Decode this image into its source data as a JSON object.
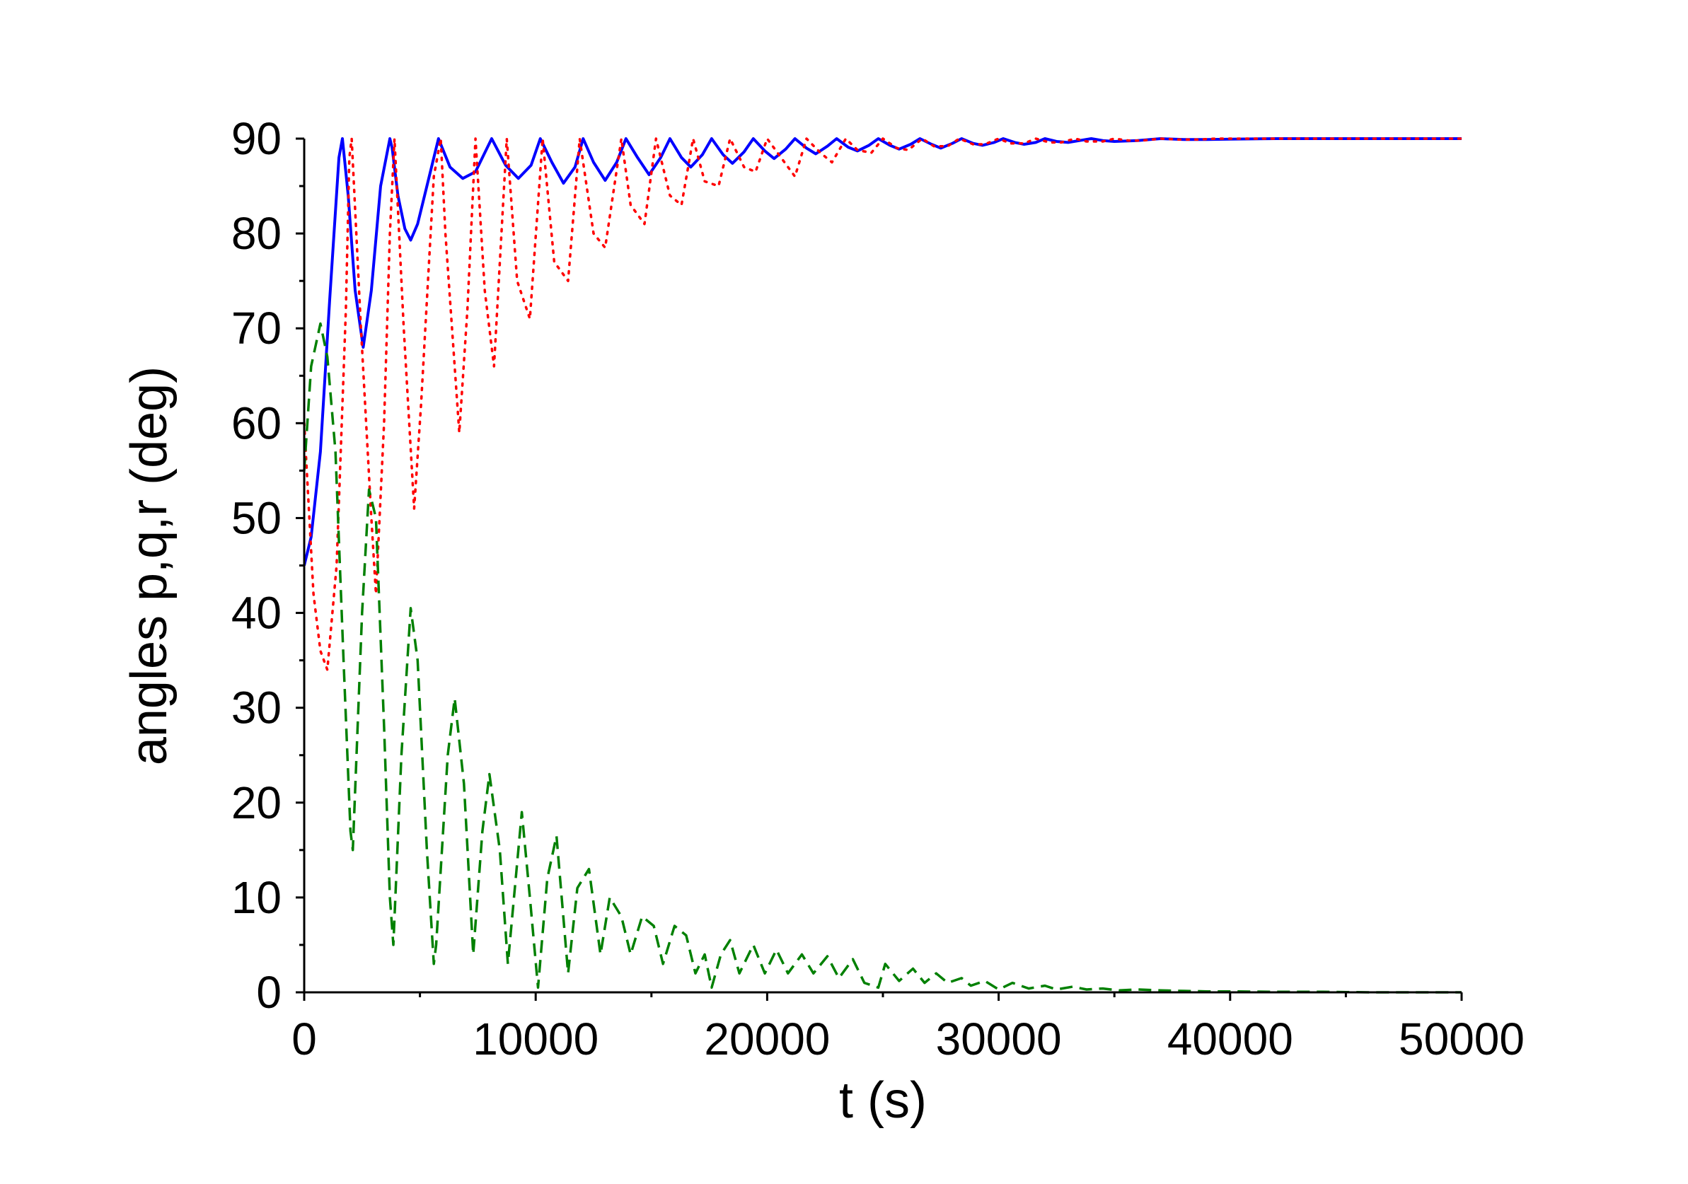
{
  "chart_data": {
    "type": "line",
    "title": "",
    "xlabel": "t (s)",
    "ylabel": "angles p,q,r (deg)",
    "xlim": [
      0,
      50000
    ],
    "ylim": [
      0,
      90
    ],
    "xticks": [
      0,
      10000,
      20000,
      30000,
      40000,
      50000
    ],
    "yticks": [
      0,
      10,
      20,
      30,
      40,
      50,
      60,
      70,
      80,
      90
    ],
    "grid": false,
    "legend": "none",
    "series": [
      {
        "style": "solid",
        "color": "#0000ff",
        "x": [
          0,
          300,
          700,
          1100,
          1500,
          1650,
          1900,
          2200,
          2550,
          2900,
          3300,
          3700,
          3800,
          4050,
          4350,
          4600,
          4900,
          5300,
          5800,
          6300,
          6850,
          7400,
          8100,
          8700,
          9250,
          9800,
          10200,
          10700,
          11200,
          11700,
          12050,
          12500,
          13000,
          13500,
          13900,
          14400,
          14900,
          15400,
          15800,
          16300,
          16700,
          17200,
          17600,
          18100,
          18500,
          19000,
          19400,
          19900,
          20300,
          20800,
          21200,
          21700,
          22100,
          22600,
          23000,
          23500,
          23900,
          24400,
          24800,
          25300,
          25700,
          26200,
          26600,
          27100,
          27500,
          28000,
          28400,
          28900,
          29300,
          29800,
          30200,
          30700,
          31100,
          31600,
          32000,
          32500,
          33000,
          33500,
          34000,
          34500,
          35000,
          36000,
          37000,
          38000,
          39000,
          40000,
          42000,
          44000,
          46000,
          48000,
          50000
        ],
        "y": [
          45,
          48,
          57,
          73,
          88,
          90,
          84,
          74,
          68,
          74,
          85,
          90,
          89,
          84,
          80.5,
          79.3,
          81,
          85,
          90,
          87,
          85.8,
          86.5,
          90,
          87.2,
          85.8,
          87.2,
          90,
          87.5,
          85.3,
          87,
          90,
          87.5,
          85.6,
          87.5,
          90,
          88,
          86.2,
          88,
          90,
          88,
          87,
          88.3,
          90,
          88.3,
          87.4,
          88.6,
          90,
          88.7,
          87.9,
          88.9,
          90,
          89,
          88.4,
          89.2,
          90,
          89.1,
          88.7,
          89.3,
          90,
          89.3,
          88.9,
          89.4,
          90,
          89.4,
          89,
          89.5,
          90,
          89.5,
          89.3,
          89.6,
          90,
          89.6,
          89.4,
          89.6,
          90,
          89.7,
          89.6,
          89.8,
          90,
          89.8,
          89.7,
          89.8,
          90,
          89.9,
          89.9,
          89.95,
          90,
          90,
          90,
          90,
          90
        ]
      },
      {
        "style": "dotted",
        "color": "#ff0000",
        "x": [
          0,
          400,
          700,
          1000,
          1400,
          1800,
          1950,
          2050,
          2450,
          2900,
          3100,
          3450,
          3700,
          3900,
          4300,
          4750,
          5050,
          5600,
          5900,
          6100,
          6700,
          7050,
          7400,
          7800,
          8200,
          8750,
          9200,
          9750,
          10300,
          10800,
          11400,
          11900,
          12500,
          13000,
          13700,
          14100,
          14700,
          15200,
          15800,
          16300,
          16800,
          17300,
          17900,
          18400,
          19000,
          19500,
          20000,
          20600,
          21200,
          21700,
          22300,
          22800,
          23400,
          23900,
          24500,
          25000,
          25600,
          26100,
          26700,
          27200,
          27800,
          28300,
          28900,
          29400,
          30000,
          30500,
          31100,
          31600,
          32200,
          32700,
          33300,
          33800,
          34500,
          35000,
          35600,
          36200,
          37000,
          37800,
          38600,
          39400,
          40500,
          42000,
          44000,
          46000,
          48000,
          50000
        ],
        "y": [
          60,
          42,
          36,
          34,
          45,
          72,
          88,
          90,
          70,
          50,
          42,
          60,
          80,
          90,
          70,
          51,
          62,
          86,
          90,
          80,
          59,
          72,
          90,
          74,
          66,
          90,
          75,
          71,
          90,
          77,
          75,
          90,
          80,
          78.5,
          90,
          83,
          81,
          90,
          84,
          83,
          90,
          85.5,
          85,
          90,
          87,
          86.5,
          90,
          88,
          86,
          90,
          88.5,
          87.5,
          90,
          88.8,
          88.5,
          90,
          89,
          88.8,
          90,
          89.2,
          89.2,
          90,
          89.4,
          89.4,
          90,
          89.5,
          89.5,
          90,
          89.6,
          89.6,
          90,
          89.7,
          89.7,
          90,
          89.8,
          89.8,
          90,
          89.9,
          89.9,
          90,
          90,
          90,
          90,
          90,
          90,
          90
        ]
      },
      {
        "style": "dashed",
        "color": "#008000",
        "x": [
          0,
          300,
          700,
          1000,
          1350,
          1700,
          2000,
          2100,
          2500,
          2800,
          3100,
          3450,
          3700,
          3850,
          4200,
          4600,
          4900,
          5300,
          5600,
          5700,
          6200,
          6500,
          6900,
          7300,
          7700,
          8000,
          8450,
          8800,
          9400,
          9750,
          10100,
          10500,
          10900,
          11400,
          11800,
          12300,
          12800,
          13200,
          13700,
          14100,
          14600,
          15100,
          15500,
          16000,
          16500,
          16900,
          17300,
          17600,
          18000,
          18400,
          18800,
          19400,
          19900,
          20400,
          20900,
          21500,
          22000,
          22600,
          23100,
          23700,
          24200,
          24800,
          25100,
          25700,
          26300,
          26800,
          27300,
          27800,
          28400,
          28800,
          29400,
          30000,
          30600,
          31300,
          32000,
          32500,
          33200,
          33800,
          34500,
          35200,
          36000,
          37000,
          38000,
          39000,
          40000,
          42000,
          44000,
          46000,
          48000,
          50000
        ],
        "y": [
          55,
          66,
          70.5,
          67,
          57,
          35,
          17,
          15,
          40,
          53,
          50,
          28,
          10,
          5,
          25,
          40.5,
          35,
          15,
          3,
          5,
          25,
          31,
          22,
          4,
          17,
          23,
          15,
          3,
          19,
          10,
          0.5,
          12,
          16.5,
          2,
          11,
          13,
          4,
          10,
          8,
          4,
          8,
          7,
          3,
          7,
          6,
          2,
          4,
          0.5,
          4,
          5.5,
          2,
          5,
          2,
          4.5,
          2,
          4,
          2,
          3.8,
          1.5,
          3.5,
          1,
          0.5,
          3,
          1.2,
          2.5,
          1,
          2,
          1,
          1.5,
          0.7,
          1.2,
          0.3,
          1,
          0.4,
          0.7,
          0.3,
          0.6,
          0.3,
          0.4,
          0.2,
          0.3,
          0.2,
          0.15,
          0.1,
          0.1,
          0.05,
          0.05,
          0,
          0,
          0
        ]
      }
    ]
  }
}
